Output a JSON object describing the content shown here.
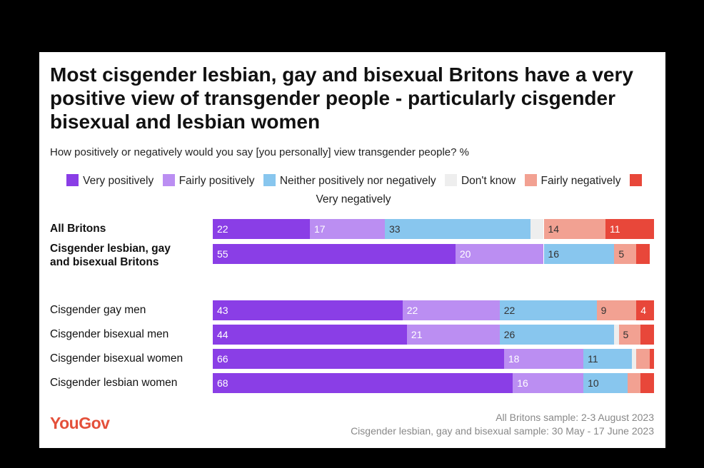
{
  "chart_data": {
    "type": "bar",
    "orientation": "horizontal",
    "stacked": true,
    "title": "Most cisgender lesbian, gay and bisexual Britons have a very positive view of transgender people - particularly cisgender bisexual and lesbian women",
    "subtitle": "How positively or negatively would you say [you personally] view transgender people? %",
    "categories": [
      "All Britons",
      "Cisgender lesbian, gay and bisexual Britons",
      "Cisgender gay men",
      "Cisgender bisexual men",
      "Cisgender bisexual women",
      "Cisgender lesbian women"
    ],
    "series": [
      {
        "name": "Very positively",
        "color": "#8a3ee6",
        "values": [
          22,
          55,
          43,
          44,
          66,
          68
        ]
      },
      {
        "name": "Fairly positively",
        "color": "#bb8ef2",
        "values": [
          17,
          20,
          22,
          21,
          18,
          16
        ]
      },
      {
        "name": "Neither positively nor negatively",
        "color": "#88c6ee",
        "values": [
          33,
          16,
          22,
          26,
          11,
          10
        ]
      },
      {
        "name": "Don't know",
        "color": "#eeeeee",
        "values": [
          3,
          0,
          0,
          1,
          1,
          0
        ]
      },
      {
        "name": "Fairly negatively",
        "color": "#f2a192",
        "values": [
          14,
          5,
          9,
          5,
          3,
          3
        ]
      },
      {
        "name": "Very negatively",
        "color": "#e8473a",
        "values": [
          11,
          3,
          4,
          3,
          1,
          3
        ]
      }
    ],
    "xlim": [
      0,
      100
    ],
    "logo": "YouGov",
    "notes": [
      "All Britons sample: 2-3 August 2023",
      "Cisgender lesbian, gay and bisexual sample: 30 May - 17 June 2023"
    ]
  }
}
